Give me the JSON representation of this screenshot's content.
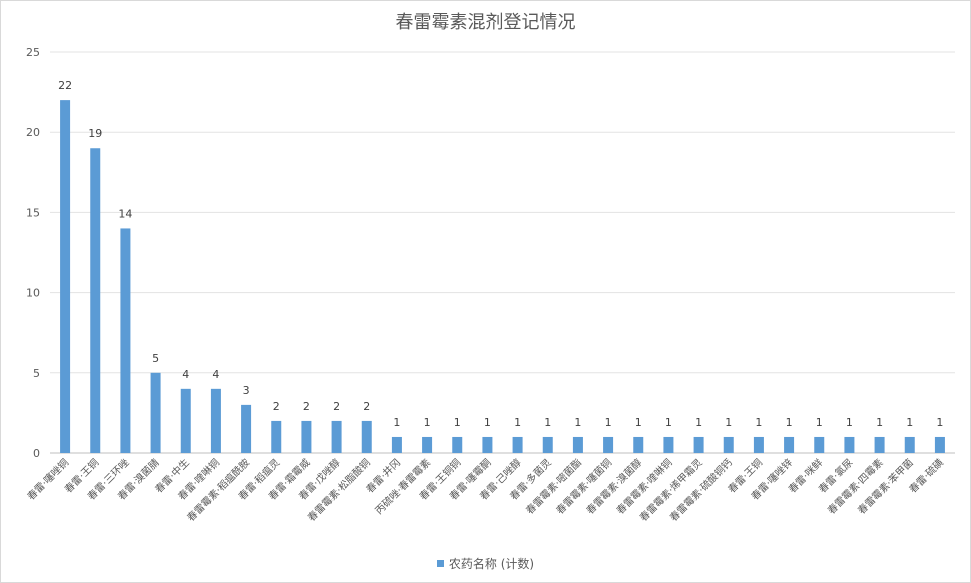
{
  "chart_data": {
    "type": "bar",
    "title": "春雷霉素混剂登记情况",
    "xlabel": "",
    "ylabel": "",
    "ylim": [
      0,
      25
    ],
    "yticks": [
      0,
      5,
      10,
      15,
      20,
      25
    ],
    "grid": true,
    "legend_position": "bottom",
    "bar_color": "#5b9bd5",
    "categories": [
      "春雷·噻唑铜",
      "春雷·王铜",
      "春雷·三环唑",
      "春雷·溴菌腈",
      "春雷·中生",
      "春雷·喹啉铜",
      "春雷霉素·稻瘟酰胺",
      "春雷·稻瘟灵",
      "春雷·霜霉威",
      "春雷·戊唑醇",
      "春雷霉素·松脂酸铜",
      "春雷·井冈",
      "丙硫唑·春雷霉素",
      "春雷·王铜铜",
      "春雷·噻霉酮",
      "春雷·己唑醇",
      "春雷·多菌灵",
      "春雷霉素·嘧菌酯",
      "春雷霉素·噻菌铜",
      "春雷霉素·溴菌醇",
      "春雷霉素·喹啉铜",
      "春雷霉素·烯甲霜灵",
      "春雷霉素·硫酸铜钙",
      "春雷·王铜",
      "春雷·噻唑锌",
      "春雷·咪鲜",
      "春雷·氯尿",
      "春雷霉素·四霉素",
      "春雷霉素·苯甲菌",
      "春雷·硫磺"
    ],
    "series": [
      {
        "name": "农药名称 (计数)",
        "values": [
          22,
          19,
          14,
          5,
          4,
          4,
          3,
          2,
          2,
          2,
          2,
          1,
          1,
          1,
          1,
          1,
          1,
          1,
          1,
          1,
          1,
          1,
          1,
          1,
          1,
          1,
          1,
          1,
          1,
          1
        ]
      }
    ]
  }
}
